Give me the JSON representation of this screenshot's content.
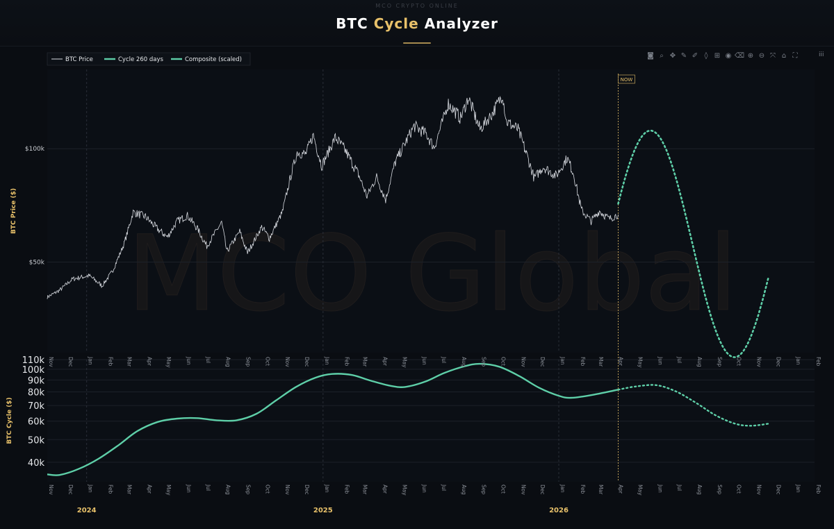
{
  "header": {
    "tagline": "MCO CRYPTO ONLINE",
    "title_part1": "BTC",
    "title_part2": "Cycle",
    "title_part3": "Analyzer"
  },
  "watermark": "MCO Global",
  "now_label": "NOW",
  "toolbar_icons": [
    "camera-icon",
    "zoom-icon",
    "pan-icon",
    "draw-line-icon",
    "draw-freeform-icon",
    "draw-shape-icon",
    "add-shape-icon",
    "eye-icon",
    "erase-icon",
    "zoom-in-icon",
    "zoom-out-icon",
    "autoscale-icon",
    "home-icon",
    "reset-axes-icon"
  ],
  "colors": {
    "background": "#0a0d12",
    "price_line": "#d9dce2",
    "cycle_line": "#5ecfa8",
    "composite_line": "#5ecfa8",
    "gold": "#e8c16a",
    "grid": "#1c2129"
  },
  "chart_data": [
    {
      "type": "line",
      "legend": [
        {
          "name": "BTC Price",
          "color": "#d9dce2"
        },
        {
          "name": "Cycle 260 days",
          "color": "#5ecfa8"
        },
        {
          "name": "Composite (scaled)",
          "color": "#5ecfa8"
        }
      ],
      "legend_position": "top-left",
      "ylabel": "BTC Price ($)",
      "y_ticks": [
        {
          "value": 50000,
          "label": "$50k"
        },
        {
          "value": 100000,
          "label": "$100k"
        }
      ],
      "x_range": [
        "2023-11-01",
        "2027-02-01"
      ],
      "y_range": [
        10000,
        135000
      ],
      "cycle": {
        "period_days": 260,
        "first_peak": "2024-04-03",
        "high": 108000,
        "low": 8000
      },
      "now_date": "2026-04-03",
      "forecast_end": "2026-11-22",
      "price_series": [
        [
          "2023-11-01",
          34500
        ],
        [
          "2023-11-20",
          37500
        ],
        [
          "2023-12-10",
          42500
        ],
        [
          "2024-01-05",
          44000
        ],
        [
          "2024-01-25",
          39500
        ],
        [
          "2024-02-10",
          46000
        ],
        [
          "2024-02-28",
          58000
        ],
        [
          "2024-03-13",
          72000
        ],
        [
          "2024-04-01",
          70000
        ],
        [
          "2024-04-20",
          64500
        ],
        [
          "2024-05-05",
          61000
        ],
        [
          "2024-05-20",
          68000
        ],
        [
          "2024-06-05",
          70500
        ],
        [
          "2024-06-20",
          65000
        ],
        [
          "2024-07-05",
          57000
        ],
        [
          "2024-07-28",
          67500
        ],
        [
          "2024-08-05",
          54500
        ],
        [
          "2024-08-25",
          63500
        ],
        [
          "2024-09-06",
          54000
        ],
        [
          "2024-09-28",
          65500
        ],
        [
          "2024-10-10",
          60500
        ],
        [
          "2024-10-30",
          72000
        ],
        [
          "2024-11-12",
          88000
        ],
        [
          "2024-11-22",
          98500
        ],
        [
          "2024-12-05",
          97500
        ],
        [
          "2024-12-17",
          106000
        ],
        [
          "2024-12-30",
          92500
        ],
        [
          "2025-01-20",
          105000
        ],
        [
          "2025-02-05",
          99000
        ],
        [
          "2025-02-25",
          88500
        ],
        [
          "2025-03-10",
          79000
        ],
        [
          "2025-03-25",
          87500
        ],
        [
          "2025-04-08",
          77500
        ],
        [
          "2025-04-22",
          93500
        ],
        [
          "2025-05-10",
          103500
        ],
        [
          "2025-05-22",
          110000
        ],
        [
          "2025-06-10",
          106500
        ],
        [
          "2025-06-22",
          100500
        ],
        [
          "2025-07-14",
          120000
        ],
        [
          "2025-08-02",
          113500
        ],
        [
          "2025-08-14",
          122500
        ],
        [
          "2025-09-01",
          108500
        ],
        [
          "2025-09-20",
          115500
        ],
        [
          "2025-10-06",
          124000
        ],
        [
          "2025-10-12",
          112000
        ],
        [
          "2025-10-30",
          108500
        ],
        [
          "2025-11-14",
          96000
        ],
        [
          "2025-11-24",
          87000
        ],
        [
          "2025-12-08",
          92000
        ],
        [
          "2025-12-28",
          88000
        ],
        [
          "2026-01-14",
          96000
        ],
        [
          "2026-01-24",
          89000
        ],
        [
          "2026-02-05",
          73000
        ],
        [
          "2026-02-20",
          68000
        ],
        [
          "2026-03-05",
          72500
        ],
        [
          "2026-03-20",
          69000
        ],
        [
          "2026-04-03",
          71000
        ]
      ]
    },
    {
      "type": "line",
      "ylabel": "BTC Cycle ($)",
      "y_scale": "log",
      "y_range": [
        33000,
        110000
      ],
      "y_ticks": [
        {
          "value": 40000,
          "label": "40k"
        },
        {
          "value": 50000,
          "label": "50k"
        },
        {
          "value": 60000,
          "label": "60k"
        },
        {
          "value": 70000,
          "label": "70k"
        },
        {
          "value": 80000,
          "label": "80k"
        },
        {
          "value": 90000,
          "label": "90k"
        },
        {
          "value": 100000,
          "label": "100k"
        },
        {
          "value": 110000,
          "label": "110k"
        }
      ],
      "series": [
        {
          "points": [
            [
              "2023-11-01",
              35500
            ],
            [
              "2023-11-20",
              35300
            ],
            [
              "2023-12-20",
              37500
            ],
            [
              "2024-01-20",
              41500
            ],
            [
              "2024-02-20",
              47500
            ],
            [
              "2024-03-20",
              54500
            ],
            [
              "2024-04-20",
              59500
            ],
            [
              "2024-05-20",
              61500
            ],
            [
              "2024-06-20",
              61800
            ],
            [
              "2024-07-20",
              60500
            ],
            [
              "2024-08-20",
              60500
            ],
            [
              "2024-09-20",
              64500
            ],
            [
              "2024-10-20",
              73500
            ],
            [
              "2024-11-20",
              84000
            ],
            [
              "2024-12-20",
              92000
            ],
            [
              "2025-01-15",
              95500
            ],
            [
              "2025-02-15",
              94500
            ],
            [
              "2025-03-15",
              89500
            ],
            [
              "2025-04-15",
              85000
            ],
            [
              "2025-05-08",
              84000
            ],
            [
              "2025-06-08",
              88500
            ],
            [
              "2025-07-08",
              96500
            ],
            [
              "2025-08-08",
              103000
            ],
            [
              "2025-09-01",
              105500
            ],
            [
              "2025-10-01",
              102500
            ],
            [
              "2025-11-01",
              93500
            ],
            [
              "2025-12-01",
              83500
            ],
            [
              "2026-01-01",
              77000
            ],
            [
              "2026-01-20",
              75500
            ],
            [
              "2026-02-20",
              77500
            ],
            [
              "2026-04-03",
              81800
            ]
          ]
        },
        {
          "forecast": true,
          "points": [
            [
              "2026-04-03",
              81800
            ],
            [
              "2026-05-01",
              84500
            ],
            [
              "2026-06-01",
              85500
            ],
            [
              "2026-07-01",
              80500
            ],
            [
              "2026-08-01",
              72000
            ],
            [
              "2026-09-01",
              63500
            ],
            [
              "2026-10-01",
              58500
            ],
            [
              "2026-10-25",
              57300
            ],
            [
              "2026-11-22",
              58500
            ]
          ]
        }
      ]
    }
  ],
  "x_month_labels": [
    "Nov",
    "Dec",
    "Jan",
    "Feb",
    "Mar",
    "Apr",
    "May",
    "Jun",
    "Jul",
    "Aug",
    "Sep",
    "Oct",
    "Nov",
    "Dec",
    "Jan",
    "Feb",
    "Mar",
    "Apr",
    "May",
    "Jun",
    "Jul",
    "Aug",
    "Sep",
    "Oct",
    "Nov",
    "Dec",
    "Jan",
    "Feb",
    "Mar",
    "Apr",
    "May",
    "Jun",
    "Jul",
    "Aug",
    "Sep",
    "Oct",
    "Nov",
    "Dec",
    "Jan",
    "Feb"
  ],
  "x_year_labels": [
    {
      "date": "2024-01-01",
      "label": "2024"
    },
    {
      "date": "2025-01-01",
      "label": "2025"
    },
    {
      "date": "2026-01-01",
      "label": "2026"
    }
  ]
}
